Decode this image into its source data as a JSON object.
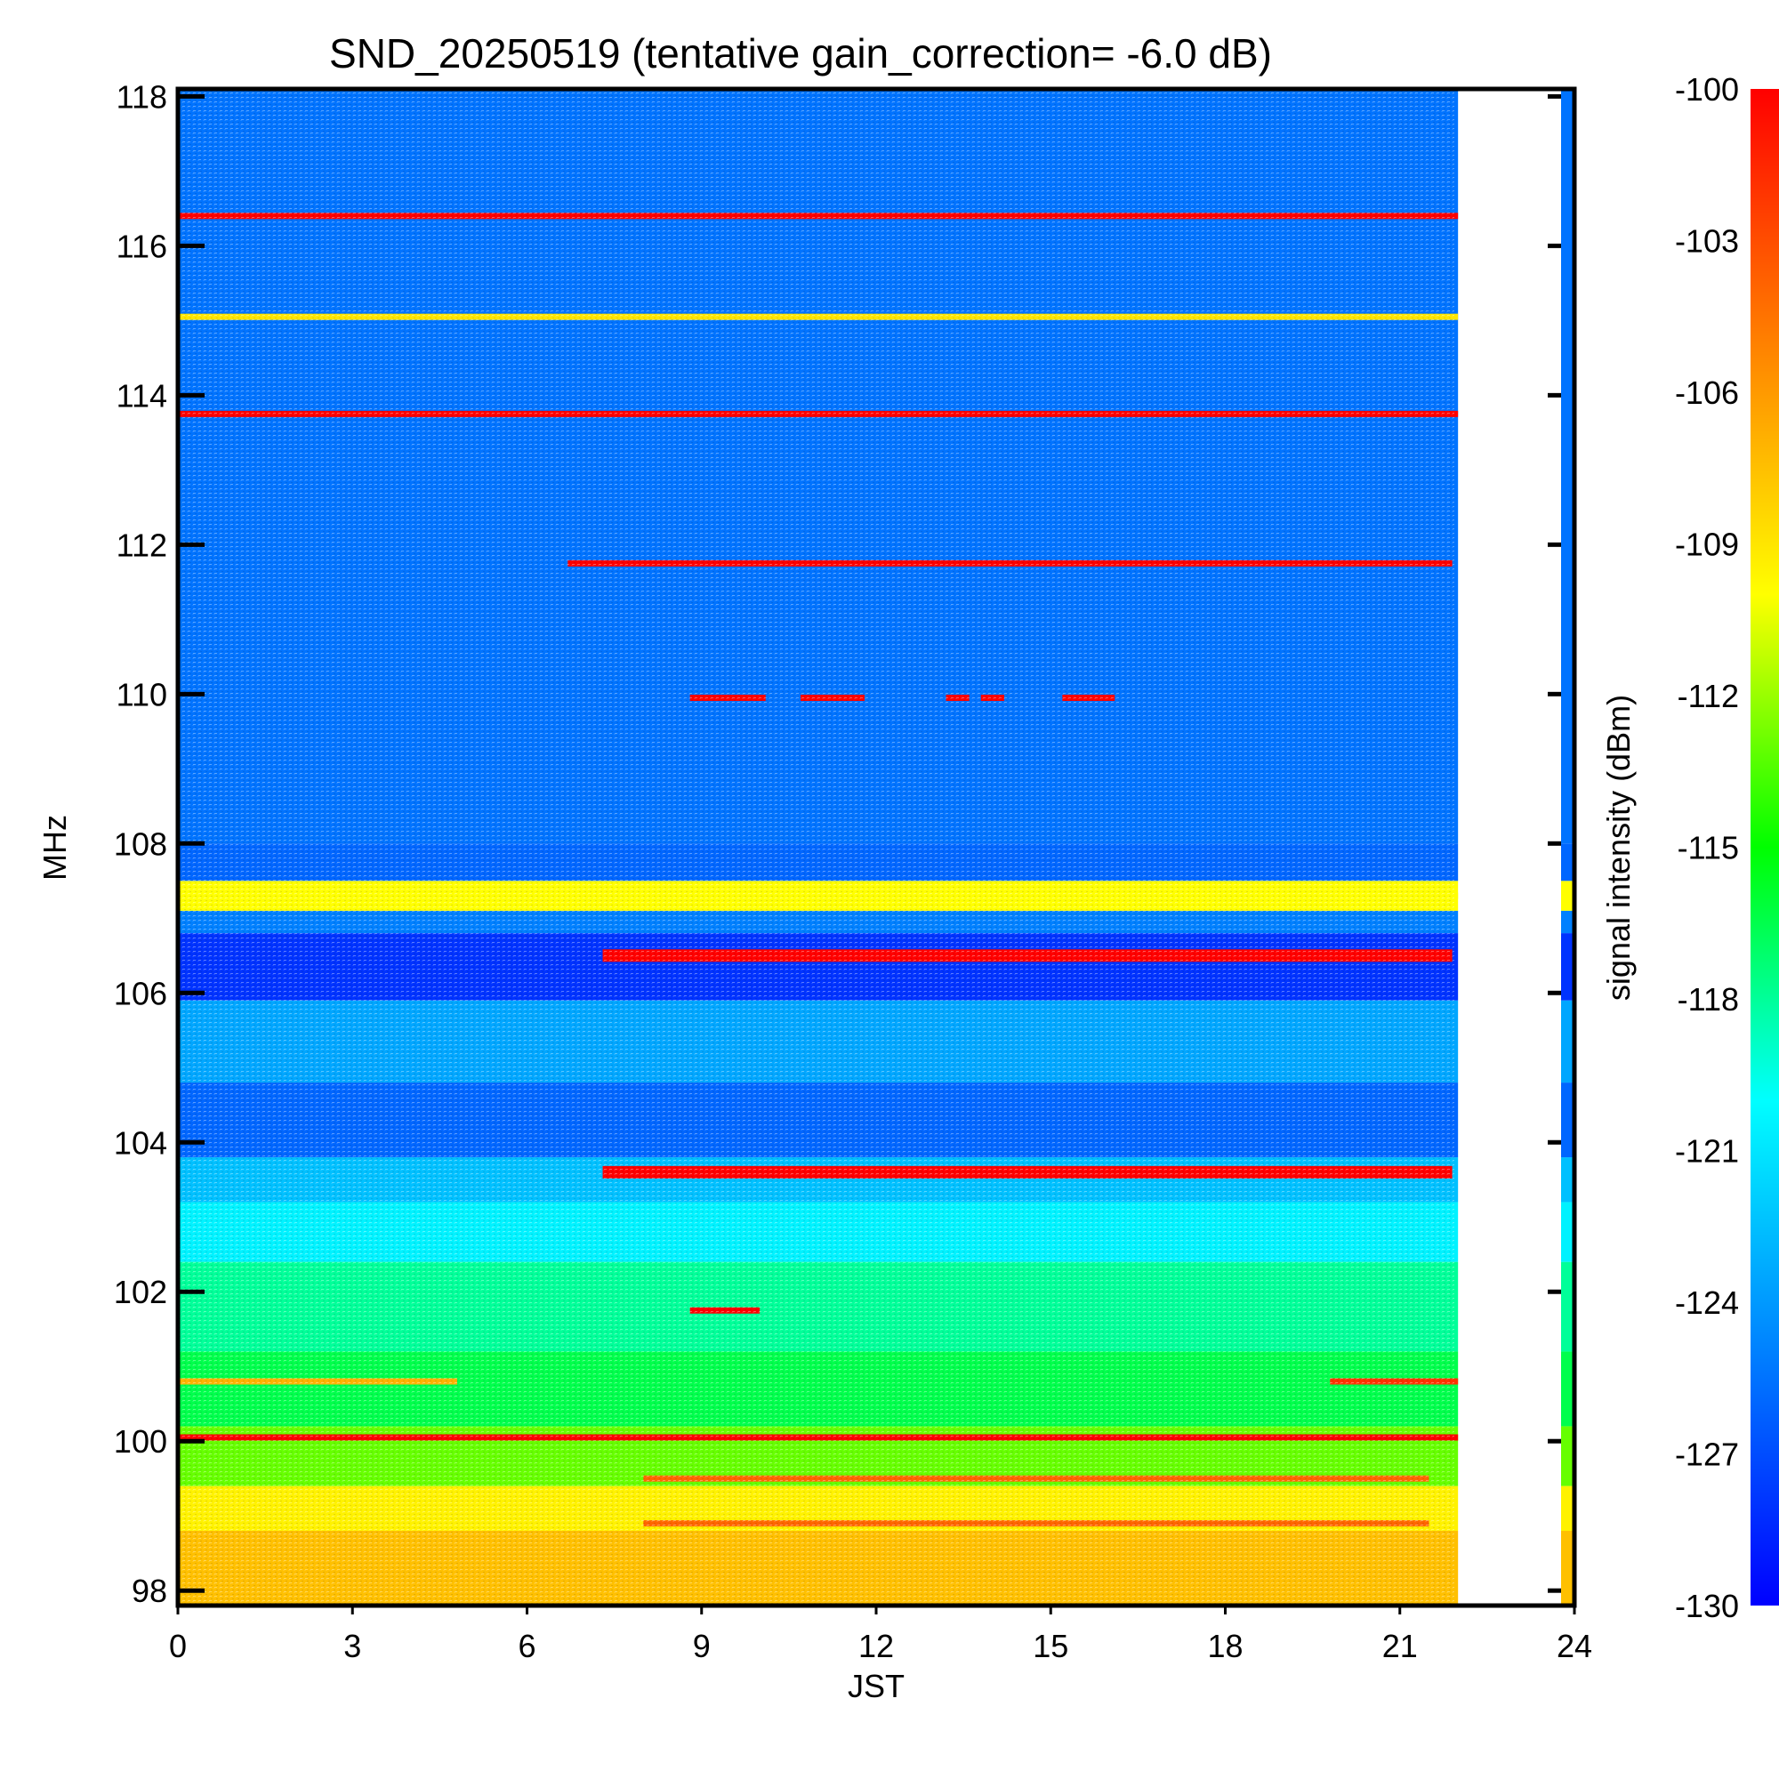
{
  "chart_data": {
    "type": "heatmap",
    "title": "SND_20250519 (tentative gain_correction= -6.0 dB)",
    "xlabel": "JST",
    "ylabel": "MHz",
    "colorbar_label": "signal intensity (dBm)",
    "xlim": [
      0,
      24
    ],
    "ylim": [
      97.8,
      118.1
    ],
    "x_ticks": [
      "0",
      "3",
      "6",
      "9",
      "12",
      "15",
      "18",
      "21",
      "24"
    ],
    "x_tick_values": [
      0,
      3,
      6,
      9,
      12,
      15,
      18,
      21,
      24
    ],
    "y_ticks": [
      "98",
      "100",
      "102",
      "104",
      "106",
      "108",
      "110",
      "112",
      "114",
      "116",
      "118"
    ],
    "y_tick_values": [
      98,
      100,
      102,
      104,
      106,
      108,
      110,
      112,
      114,
      116,
      118
    ],
    "colorbar_ticks": [
      "-100",
      "-103",
      "-106",
      "-109",
      "-112",
      "-115",
      "-118",
      "-121",
      "-124",
      "-127",
      "-130"
    ],
    "colorbar_tick_values": [
      -100,
      -103,
      -106,
      -109,
      -112,
      -115,
      -118,
      -121,
      -124,
      -127,
      -130
    ],
    "colorbar_range": [
      -130,
      -100
    ],
    "data_end_jst": 22,
    "colormap": [
      "#0000ff",
      "#0080ff",
      "#00ffff",
      "#00ff00",
      "#ffff00",
      "#ff8000",
      "#ff0000"
    ],
    "background_bands": [
      {
        "freq_from": 97.8,
        "freq_to": 98.8,
        "dbm": -107.5
      },
      {
        "freq_from": 98.8,
        "freq_to": 99.4,
        "dbm": -109.5
      },
      {
        "freq_from": 99.4,
        "freq_to": 100.2,
        "dbm": -113
      },
      {
        "freq_from": 100.2,
        "freq_to": 101.2,
        "dbm": -116.5
      },
      {
        "freq_from": 101.2,
        "freq_to": 102.4,
        "dbm": -118
      },
      {
        "freq_from": 102.4,
        "freq_to": 103.2,
        "dbm": -120.5
      },
      {
        "freq_from": 103.2,
        "freq_to": 103.8,
        "dbm": -122.5
      },
      {
        "freq_from": 103.8,
        "freq_to": 104.8,
        "dbm": -126
      },
      {
        "freq_from": 104.8,
        "freq_to": 105.9,
        "dbm": -123.5
      },
      {
        "freq_from": 105.9,
        "freq_to": 106.8,
        "dbm": -128
      },
      {
        "freq_from": 106.8,
        "freq_to": 107.1,
        "dbm": -125
      },
      {
        "freq_from": 107.1,
        "freq_to": 107.5,
        "dbm": -110
      },
      {
        "freq_from": 107.5,
        "freq_to": 108.0,
        "dbm": -126
      },
      {
        "freq_from": 108.0,
        "freq_to": 118.1,
        "dbm": -125.5
      }
    ],
    "signal_lines": [
      {
        "freq": 116.4,
        "jst_from": 0,
        "jst_to": 22,
        "dbm": -100
      },
      {
        "freq": 115.05,
        "jst_from": 0,
        "jst_to": 22,
        "dbm": -109
      },
      {
        "freq": 113.75,
        "jst_from": 0,
        "jst_to": 22,
        "dbm": -100
      },
      {
        "freq": 111.75,
        "jst_from": 6.7,
        "jst_to": 21.9,
        "dbm": -100
      },
      {
        "freq": 109.95,
        "jst_from": 8.8,
        "jst_to": 10.1,
        "dbm": -100
      },
      {
        "freq": 109.95,
        "jst_from": 10.7,
        "jst_to": 11.8,
        "dbm": -100
      },
      {
        "freq": 109.95,
        "jst_from": 13.2,
        "jst_to": 13.6,
        "dbm": -100
      },
      {
        "freq": 109.95,
        "jst_from": 13.8,
        "jst_to": 14.2,
        "dbm": -100
      },
      {
        "freq": 109.95,
        "jst_from": 15.2,
        "jst_to": 16.1,
        "dbm": -100
      },
      {
        "freq": 107.3,
        "jst_from": 0,
        "jst_to": 22,
        "dbm": -110
      },
      {
        "freq": 106.5,
        "jst_from": 7.3,
        "jst_to": 21.9,
        "dbm": -100
      },
      {
        "freq": 103.6,
        "jst_from": 7.3,
        "jst_to": 21.9,
        "dbm": -100
      },
      {
        "freq": 101.75,
        "jst_from": 8.8,
        "jst_to": 10.0,
        "dbm": -100
      },
      {
        "freq": 100.8,
        "jst_from": 0,
        "jst_to": 4.8,
        "dbm": -107
      },
      {
        "freq": 100.8,
        "jst_from": 19.8,
        "jst_to": 22,
        "dbm": -102
      },
      {
        "freq": 100.05,
        "jst_from": 0,
        "jst_to": 22,
        "dbm": -100
      },
      {
        "freq": 99.5,
        "jst_from": 8,
        "jst_to": 21.5,
        "dbm": -104
      },
      {
        "freq": 98.9,
        "jst_from": 8,
        "jst_to": 21.5,
        "dbm": -104
      }
    ]
  }
}
